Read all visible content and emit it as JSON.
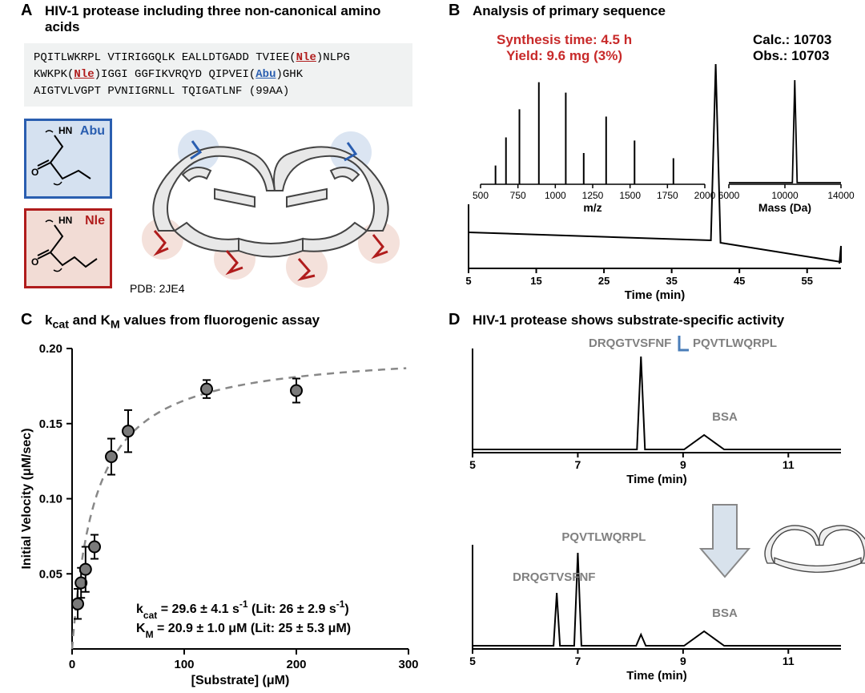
{
  "panelA": {
    "label": "A",
    "title": "HIV-1 protease including three non-canonical amino acids",
    "sequence_line1_a": "PQITLWKRPL VTIRIGGQLK EALLDTGADD TVIEE(",
    "sequence_line1_nle": "Nle",
    "sequence_line1_b": ")NLPG",
    "sequence_line2_a": "KWKPK(",
    "sequence_line2_nle": "Nle",
    "sequence_line2_b": ")IGGI GGFIKVRQYD QIPVEI(",
    "sequence_line2_abu": "Abu",
    "sequence_line2_c": ")GHK",
    "sequence_line3": "AIGTVLVGPT PVNIIGRNLL TQIGATLNF (99AA)",
    "abu_label": "Abu",
    "nle_label": "Nle",
    "pdb_label": "PDB: 2JE4",
    "abu_color": "#2a5eb0",
    "nle_color": "#b01c1c"
  },
  "panelB": {
    "label": "B",
    "title": "Analysis of primary sequence",
    "synthesis_line1": "Synthesis time: 4.5 h",
    "synthesis_line2": "Yield: 9.6 mg (3%)",
    "calc_label": "Calc.: 10703",
    "obs_label": "Obs.: 10703",
    "chrom": {
      "xlabel": "Time (min)",
      "xticks": [
        5,
        15,
        25,
        35,
        45,
        55
      ],
      "xlim": [
        5,
        60
      ],
      "peak_x": 41.5,
      "baseline_y": 0.05
    },
    "ms_inset": {
      "xlabel": "m/z",
      "xticks": [
        500,
        750,
        1000,
        1250,
        1500,
        1750,
        2000
      ],
      "peaks": [
        {
          "x": 600,
          "h": 0.18
        },
        {
          "x": 670,
          "h": 0.45
        },
        {
          "x": 760,
          "h": 0.72
        },
        {
          "x": 890,
          "h": 0.98
        },
        {
          "x": 1070,
          "h": 0.88
        },
        {
          "x": 1190,
          "h": 0.3
        },
        {
          "x": 1340,
          "h": 0.65
        },
        {
          "x": 1530,
          "h": 0.42
        },
        {
          "x": 1790,
          "h": 0.25
        }
      ]
    },
    "deconv_inset": {
      "xlabel": "Mass (Da)",
      "xticks": [
        6000,
        10000,
        14000
      ],
      "peak_x": 10703
    }
  },
  "panelC": {
    "label": "C",
    "title_pre": "k",
    "title_cat": "cat",
    "title_mid": " and K",
    "title_m": "M",
    "title_post": " values from fluorogenic assay",
    "ylabel": "Initial Velocity (μM/sec)",
    "xlabel": "[Substrate] (μM)",
    "xlim": [
      0,
      300
    ],
    "ylim": [
      0,
      0.2
    ],
    "xticks": [
      0,
      100,
      200,
      300
    ],
    "yticks": [
      0.05,
      0.1,
      0.15,
      0.2
    ],
    "points": [
      {
        "x": 5,
        "y": 0.03,
        "err": 0.01
      },
      {
        "x": 8,
        "y": 0.044,
        "err": 0.01
      },
      {
        "x": 12,
        "y": 0.053,
        "err": 0.015
      },
      {
        "x": 20,
        "y": 0.068,
        "err": 0.008
      },
      {
        "x": 35,
        "y": 0.128,
        "err": 0.012
      },
      {
        "x": 50,
        "y": 0.145,
        "err": 0.014
      },
      {
        "x": 120,
        "y": 0.173,
        "err": 0.006
      },
      {
        "x": 200,
        "y": 0.172,
        "err": 0.008
      }
    ],
    "vmax": 0.2,
    "km": 20.9,
    "marker_fill": "#7a7a7a",
    "marker_stroke": "#000000",
    "curve_color": "#888888",
    "kcat_line_pre": "k",
    "kcat_line_sub": "cat",
    "kcat_line_val": " = 29.6 ± 4.1 s",
    "kcat_line_sup": "-1",
    "kcat_line_lit": " (Lit: 26 ± 2.9 s",
    "kcat_line_sup2": "-1",
    "kcat_line_end": ")",
    "km_line_pre": "K",
    "km_line_sub": "M",
    "km_line_val": " = 20.9 ± 1.0 μM (Lit: 25 ± 5.3 μM)"
  },
  "panelD": {
    "label": "D",
    "title": "HIV-1 protease shows substrate-specific activity",
    "substrate_seq_left": "DRQGTVSFNF",
    "substrate_seq_right": "PQVTLWQRPL",
    "bsa_label": "BSA",
    "frag1_label": "PQVTLWQRPL",
    "frag2_label": "DRQGTVSFNF",
    "xlabel": "Time (min)",
    "xticks": [
      5,
      7,
      9,
      11
    ],
    "xlim": [
      5,
      12
    ],
    "top_peak_x": 8.2,
    "top_bsa_x": 9.4,
    "bot_peak1_x": 6.6,
    "bot_peak2_x": 7.0,
    "bot_small_x": 8.2,
    "bot_bsa_x": 9.4,
    "seq_color": "#808080",
    "cleave_color": "#4a7db8"
  }
}
